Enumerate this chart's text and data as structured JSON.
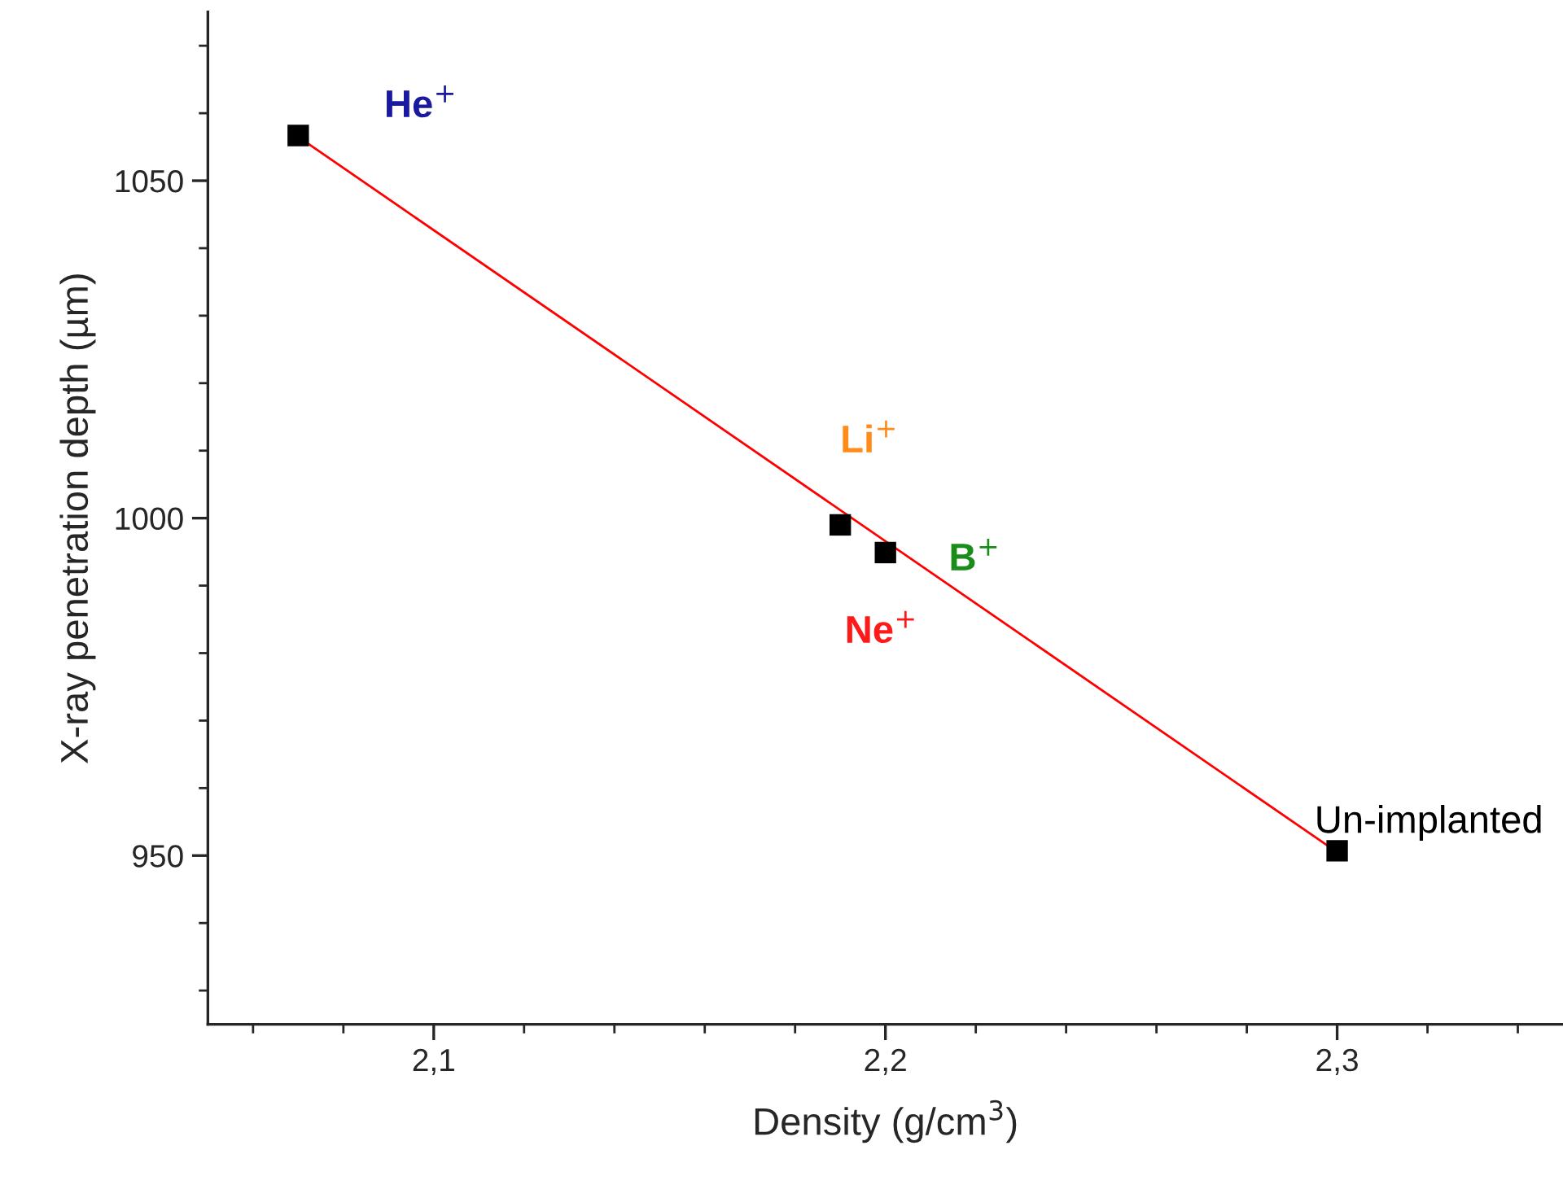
{
  "chart_data": {
    "type": "scatter",
    "xlabel": "Density (g/cm$^{3}$)",
    "ylabel": "X-ray penetration depth (µm)",
    "xlim": [
      2.05,
      2.35
    ],
    "ylim": [
      925,
      1075
    ],
    "xticks": [
      {
        "value": 2.1,
        "label": "2,1"
      },
      {
        "value": 2.2,
        "label": "2,2"
      },
      {
        "value": 2.3,
        "label": "2,3"
      }
    ],
    "yticks": [
      950,
      1000,
      1050
    ],
    "grid": false,
    "series": [
      {
        "type": "line",
        "color": "#ff0000",
        "x": [
          2.07,
          2.3
        ],
        "values": [
          1056.5,
          950.5
        ]
      },
      {
        "color": "#000000",
        "marker": "square",
        "x": [
          2.07,
          2.19,
          2.2,
          2.3
        ],
        "values": [
          1056.7,
          999,
          994.9,
          950.7
        ]
      }
    ],
    "annotations": [
      {
        "text": "He$^{+}$",
        "x": 2.07,
        "y": 1056.7
      },
      {
        "text": "Li$^{+}$",
        "x": 2.19,
        "y": 999
      },
      {
        "text": "B$^{+}$",
        "x": 2.2,
        "y": 994.9
      },
      {
        "text": "Ne$^{+}$",
        "x": 2.2,
        "y": 994.9
      },
      {
        "text": "Un-implanted",
        "x": 2.3,
        "y": 950.7
      }
    ]
  }
}
